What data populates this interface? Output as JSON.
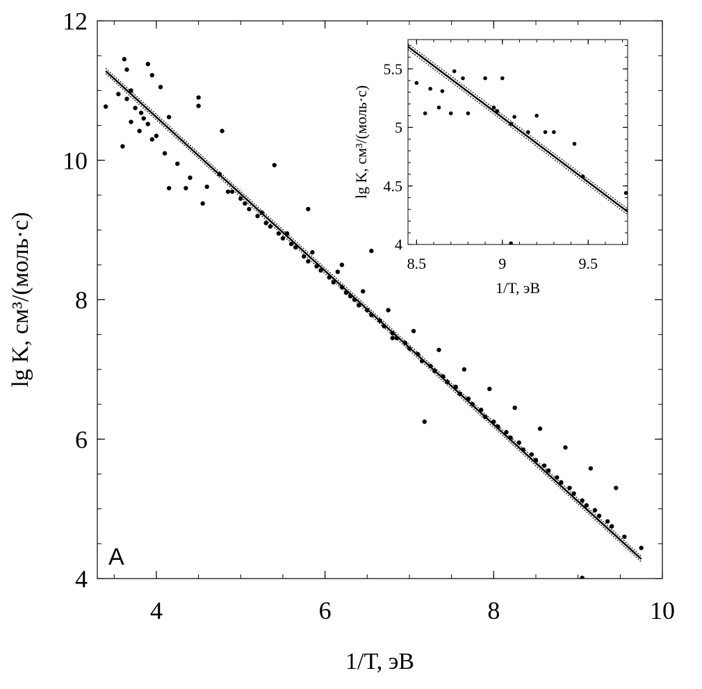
{
  "chart_data": [
    {
      "type": "scatter",
      "panel_label": "A",
      "xlabel": "1/T, эВ",
      "ylabel": "lg K, см³/(моль·с)",
      "xlim": [
        3.3,
        10
      ],
      "ylim": [
        4,
        12
      ],
      "x_ticks": [
        "4",
        "6",
        "8",
        "10"
      ],
      "x_tick_values": [
        4,
        6,
        8,
        10
      ],
      "y_ticks": [
        "4",
        "6",
        "8",
        "10",
        "12"
      ],
      "y_tick_values": [
        4,
        6,
        8,
        10,
        12
      ],
      "fit_line": {
        "x": [
          3.4,
          9.75
        ],
        "y": [
          11.28,
          4.28
        ]
      },
      "confidence_band": 0.04,
      "series": [
        {
          "points_x": [
            3.4,
            3.62,
            3.65,
            3.9,
            3.95,
            4.05,
            4.15,
            3.55,
            3.6,
            3.7,
            3.75,
            3.85,
            3.8,
            4.0,
            3.65,
            3.7,
            3.82,
            3.9,
            3.95,
            4.5,
            4.5,
            4.78,
            4.55,
            4.15,
            4.35,
            5.4,
            5.8,
            6.2,
            6.3,
            6.55,
            6.8,
            7.18,
            9.05,
            9.75,
            4.1,
            4.25,
            4.4,
            4.6,
            4.75,
            4.9,
            5.05,
            5.2,
            5.35,
            5.5,
            5.65,
            5.8,
            5.95,
            6.1,
            6.25,
            6.4,
            6.55,
            6.7,
            6.85,
            7.0,
            7.15,
            7.3,
            7.45,
            7.6,
            7.75,
            7.9,
            8.05,
            8.2,
            8.35,
            8.5,
            8.65,
            8.8,
            8.95,
            9.1,
            9.25,
            9.4,
            9.55,
            4.85,
            5.1,
            5.3,
            5.45,
            5.6,
            5.75,
            5.9,
            6.05,
            6.2,
            6.35,
            6.5,
            6.65,
            6.8,
            6.95,
            7.1,
            7.25,
            7.4,
            7.55,
            7.7,
            7.85,
            8.0,
            8.15,
            8.3,
            8.45,
            8.6,
            8.75,
            8.9,
            9.05,
            9.2,
            9.35,
            5.0,
            5.25,
            5.55,
            5.85,
            6.15,
            6.45,
            6.75,
            7.05,
            7.35,
            7.65,
            7.95,
            8.25,
            8.55,
            8.85,
            9.15,
            9.45
          ],
          "points_y": [
            10.77,
            11.45,
            11.3,
            11.38,
            11.22,
            11.05,
            10.62,
            10.95,
            10.2,
            10.55,
            10.75,
            10.6,
            10.42,
            10.35,
            10.88,
            11.0,
            10.68,
            10.52,
            10.3,
            10.9,
            10.78,
            10.42,
            9.38,
            9.6,
            9.6,
            9.93,
            9.3,
            8.5,
            8.05,
            8.7,
            7.45,
            6.25,
            4.01,
            4.44,
            10.1,
            9.95,
            9.75,
            9.62,
            9.8,
            9.55,
            9.38,
            9.2,
            9.05,
            8.88,
            8.75,
            8.55,
            8.42,
            8.25,
            8.1,
            7.92,
            7.78,
            7.62,
            7.45,
            7.3,
            7.12,
            6.98,
            6.82,
            6.65,
            6.5,
            6.32,
            6.18,
            6.02,
            5.85,
            5.7,
            5.55,
            5.38,
            5.22,
            5.05,
            4.9,
            4.75,
            4.6,
            9.55,
            9.3,
            9.1,
            8.95,
            8.8,
            8.62,
            8.48,
            8.32,
            8.18,
            8.0,
            7.85,
            7.7,
            7.52,
            7.38,
            7.22,
            7.05,
            6.9,
            6.75,
            6.58,
            6.42,
            6.25,
            6.1,
            5.95,
            5.78,
            5.62,
            5.45,
            5.3,
            5.12,
            4.98,
            4.82,
            9.45,
            9.25,
            8.95,
            8.68,
            8.4,
            8.12,
            7.85,
            7.55,
            7.28,
            7.0,
            6.72,
            6.45,
            6.15,
            5.88,
            5.58,
            5.3
          ]
        }
      ]
    },
    {
      "type": "scatter",
      "panel_label": "",
      "xlabel": "1/T, эВ",
      "ylabel": "lg K, см³/(моль·с)",
      "xlim": [
        8.45,
        9.73
      ],
      "ylim": [
        4.0,
        5.75
      ],
      "x_ticks": [
        "8.5",
        "9",
        "9.5"
      ],
      "x_tick_values": [
        8.5,
        9,
        9.5
      ],
      "y_ticks": [
        "4",
        "4.5",
        "5",
        "5.5"
      ],
      "y_tick_values": [
        4,
        4.5,
        5,
        5.5
      ],
      "fit_line": {
        "x": [
          8.45,
          9.73
        ],
        "y": [
          5.69,
          4.28
        ]
      },
      "confidence_band": 0.025,
      "series": [
        {
          "points_x": [
            8.5,
            8.55,
            8.58,
            8.63,
            8.65,
            8.7,
            8.72,
            8.77,
            8.8,
            8.9,
            8.95,
            8.97,
            9.0,
            9.05,
            9.07,
            9.15,
            9.2,
            9.25,
            9.3,
            9.42,
            9.47,
            9.72,
            9.05
          ],
          "points_y": [
            5.38,
            5.12,
            5.33,
            5.17,
            5.31,
            5.12,
            5.48,
            5.42,
            5.12,
            5.42,
            5.17,
            5.14,
            5.42,
            5.03,
            5.09,
            4.96,
            5.1,
            4.96,
            4.96,
            4.86,
            4.58,
            4.44,
            4.01
          ]
        }
      ]
    }
  ]
}
